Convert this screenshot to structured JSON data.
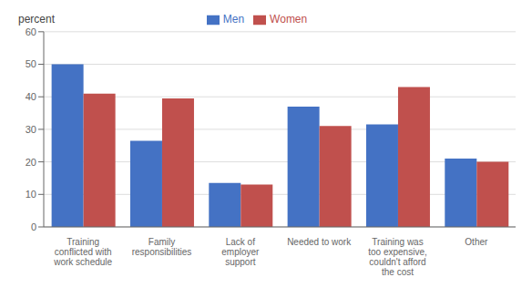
{
  "chart_data": {
    "type": "bar",
    "categories": [
      "Training\nconflicted with\nwork schedule",
      "Family\nresponsibilities",
      "Lack of\nemployer\nsupport",
      "Needed to work",
      "Training was\ntoo expensive,\ncouldn't afford\nthe cost",
      "Other"
    ],
    "series": [
      {
        "name": "Men",
        "color": "#4472c4",
        "values": [
          50,
          26.5,
          13.5,
          37,
          31.5,
          21
        ]
      },
      {
        "name": "Women",
        "color": "#c0504d",
        "values": [
          41,
          39.5,
          13,
          31,
          43,
          20
        ]
      }
    ],
    "ylabel": "percent",
    "ylim": [
      0,
      60
    ],
    "yticks": [
      0,
      10,
      20,
      30,
      40,
      50,
      60
    ],
    "grid": true,
    "legend": "top"
  }
}
